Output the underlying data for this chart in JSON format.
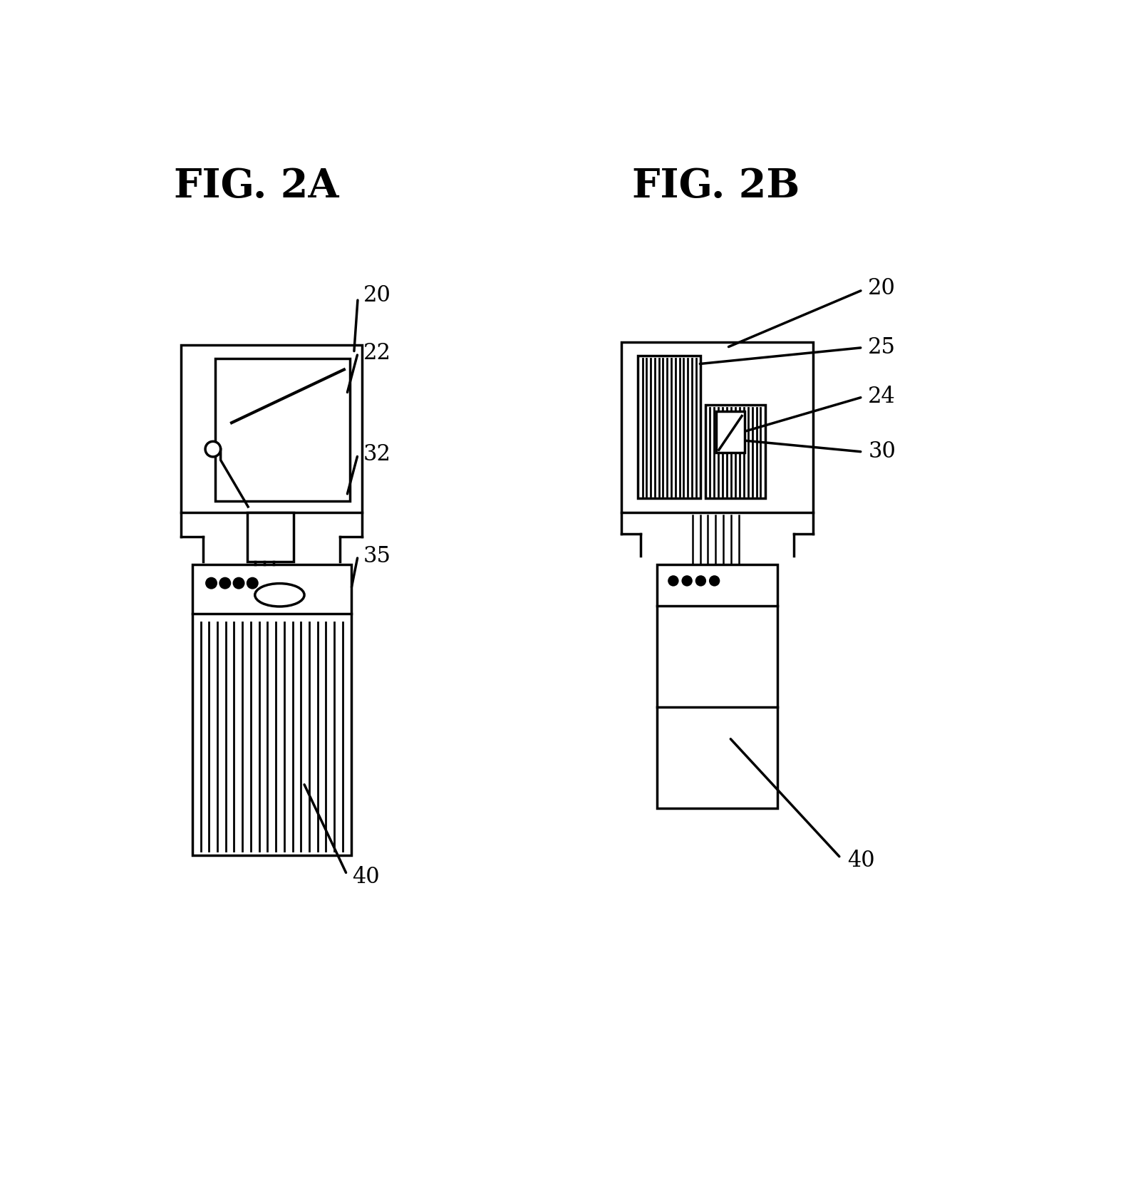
{
  "fig_title_a": "FIG. 2A",
  "fig_title_b": "FIG. 2B",
  "title_fontsize": 40,
  "label_fontsize": 22,
  "bg_color": "#ffffff",
  "line_color": "#000000",
  "line_width": 2.5
}
